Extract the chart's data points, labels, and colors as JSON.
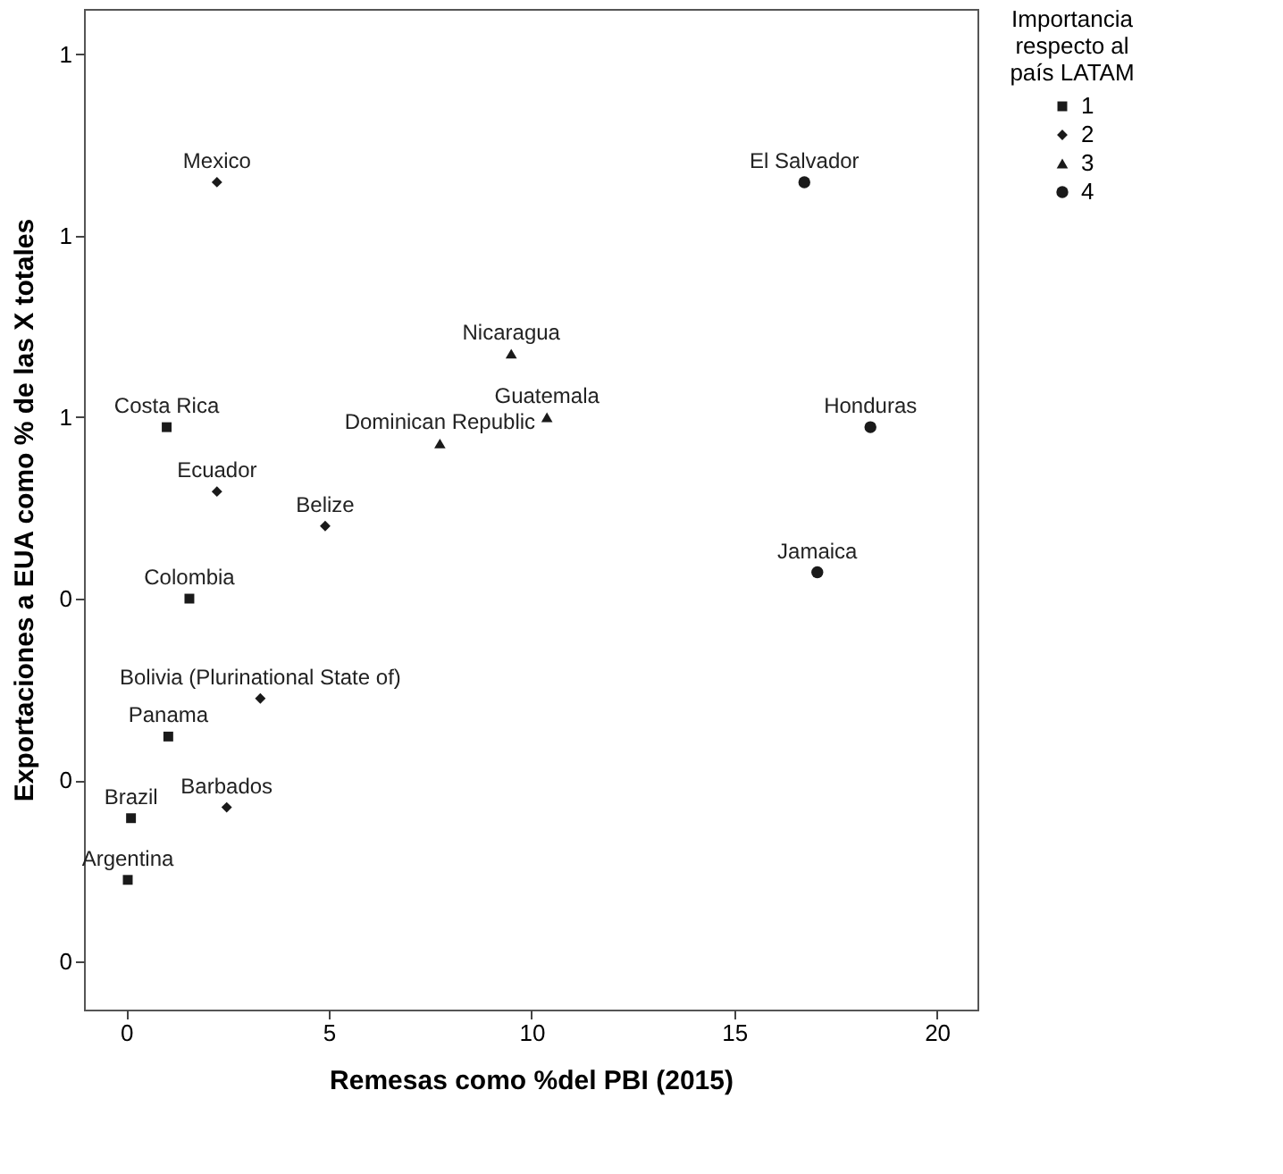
{
  "chart_data": {
    "type": "scatter",
    "xlabel": "Remesas como %del PBI (2015)",
    "ylabel": "Exportaciones a EUA como % de las X totales",
    "legend_title": "Importancia respecto al país LATAM",
    "legend": "top right",
    "grid": false,
    "xlim": [
      -1.04,
      21.0
    ],
    "xticks": [
      0,
      5,
      10,
      15,
      20
    ],
    "ylim": [
      -0.053,
      1.05
    ],
    "yticks": [
      {
        "value": 0,
        "label": "0"
      },
      {
        "value": 0.2,
        "label": "0"
      },
      {
        "value": 0.4,
        "label": "0"
      },
      {
        "value": 0.6,
        "label": "1"
      },
      {
        "value": 0.8,
        "label": "1"
      },
      {
        "value": 1.0,
        "label": "1"
      }
    ],
    "series": [
      {
        "name": "1",
        "color": "#1a1a1a",
        "marker": "square",
        "x": [
          1.0,
          1.56,
          1.04,
          0.12,
          0.04
        ],
        "values": [
          0.589,
          0.4,
          0.248,
          0.158,
          0.09
        ]
      },
      {
        "name": "2",
        "color": "#1a1a1a",
        "marker": "diamond",
        "x": [
          2.24,
          2.24,
          4.91,
          3.31,
          2.48
        ],
        "values": [
          0.859,
          0.518,
          0.48,
          0.29,
          0.17
        ]
      },
      {
        "name": "3",
        "color": "#1a1a1a",
        "marker": "triangle",
        "x": [
          9.5,
          10.38,
          7.74
        ],
        "values": [
          0.67,
          0.6,
          0.571
        ]
      },
      {
        "name": "4",
        "color": "#1a1a1a",
        "marker": "circle",
        "x": [
          16.73,
          18.36,
          17.05
        ],
        "values": [
          0.859,
          0.589,
          0.429
        ]
      }
    ],
    "annotations": [
      {
        "text": "Costa Rica",
        "x": 1.0,
        "y": 0.589
      },
      {
        "text": "Colombia",
        "x": 1.56,
        "y": 0.4
      },
      {
        "text": "Panama",
        "x": 1.04,
        "y": 0.248
      },
      {
        "text": "Brazil",
        "x": 0.12,
        "y": 0.158
      },
      {
        "text": "Argentina",
        "x": 0.04,
        "y": 0.09
      },
      {
        "text": "Mexico",
        "x": 2.24,
        "y": 0.859
      },
      {
        "text": "Ecuador",
        "x": 2.24,
        "y": 0.518
      },
      {
        "text": "Belize",
        "x": 4.91,
        "y": 0.48
      },
      {
        "text": "Bolivia (Plurinational State of)",
        "x": 3.31,
        "y": 0.29
      },
      {
        "text": "Barbados",
        "x": 2.48,
        "y": 0.17
      },
      {
        "text": "Nicaragua",
        "x": 9.5,
        "y": 0.67
      },
      {
        "text": "Guatemala",
        "x": 10.38,
        "y": 0.6
      },
      {
        "text": "Dominican Republic",
        "x": 7.74,
        "y": 0.571
      },
      {
        "text": "El Salvador",
        "x": 16.73,
        "y": 0.859
      },
      {
        "text": "Honduras",
        "x": 18.36,
        "y": 0.589
      },
      {
        "text": "Jamaica",
        "x": 17.05,
        "y": 0.429
      }
    ]
  }
}
